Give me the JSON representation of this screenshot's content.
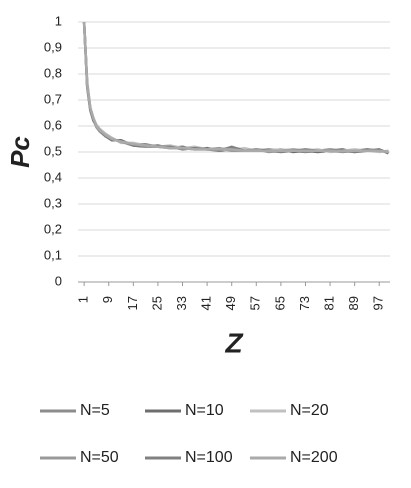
{
  "chart_data": {
    "type": "line",
    "y_label": "Pc",
    "x_label": "Z",
    "x": [
      1,
      2,
      3,
      4,
      5,
      6,
      8,
      10,
      13,
      17,
      21,
      25,
      29,
      33,
      37,
      41,
      45,
      49,
      53,
      57,
      61,
      65,
      69,
      73,
      77,
      81,
      85,
      89,
      93,
      97,
      100
    ],
    "xlim": [
      -1,
      100.5
    ],
    "xticks": [
      1,
      9,
      17,
      25,
      33,
      41,
      49,
      57,
      65,
      73,
      81,
      89,
      97
    ],
    "ylim": [
      0,
      1
    ],
    "yticks": [
      0,
      {
        "value": 0.1,
        "label": "0,1"
      },
      {
        "value": 0.2,
        "label": "0,2"
      },
      {
        "value": 0.3,
        "label": "0,3"
      },
      {
        "value": 0.4,
        "label": "0,4"
      },
      {
        "value": 0.5,
        "label": "0,5"
      },
      {
        "value": 0.6,
        "label": "0,6"
      },
      {
        "value": 0.7,
        "label": "0,7"
      },
      {
        "value": 0.8,
        "label": "0,8"
      },
      {
        "value": 0.9,
        "label": "0,9"
      },
      1
    ],
    "grid": true,
    "legend": "bottom",
    "series": [
      {
        "name": "N=5",
        "color": "#8c8c8c",
        "values": [
          1.0,
          0.76,
          0.67,
          0.63,
          0.6,
          0.585,
          0.565,
          0.55,
          0.54,
          0.53,
          0.53,
          0.52,
          0.52,
          0.515,
          0.515,
          0.51,
          0.51,
          0.515,
          0.51,
          0.505,
          0.51,
          0.505,
          0.505,
          0.5,
          0.505,
          0.51,
          0.505,
          0.505,
          0.51,
          0.505,
          0.5
        ]
      },
      {
        "name": "N=10",
        "color": "#6e6e6e",
        "values": [
          1.0,
          0.75,
          0.66,
          0.62,
          0.6,
          0.58,
          0.56,
          0.545,
          0.545,
          0.525,
          0.52,
          0.525,
          0.515,
          0.52,
          0.51,
          0.515,
          0.505,
          0.51,
          0.505,
          0.51,
          0.505,
          0.51,
          0.5,
          0.505,
          0.5,
          0.505,
          0.51,
          0.5,
          0.505,
          0.51,
          0.495
        ]
      },
      {
        "name": "N=20",
        "color": "#c0c0c0",
        "values": [
          1.0,
          0.77,
          0.67,
          0.63,
          0.605,
          0.59,
          0.57,
          0.555,
          0.535,
          0.535,
          0.525,
          0.52,
          0.525,
          0.515,
          0.52,
          0.51,
          0.51,
          0.505,
          0.515,
          0.505,
          0.505,
          0.51,
          0.505,
          0.505,
          0.51,
          0.5,
          0.505,
          0.51,
          0.505,
          0.5,
          0.505
        ]
      },
      {
        "name": "N=50",
        "color": "#999999",
        "values": [
          1.0,
          0.76,
          0.665,
          0.625,
          0.595,
          0.58,
          0.565,
          0.55,
          0.54,
          0.53,
          0.52,
          0.52,
          0.515,
          0.515,
          0.51,
          0.51,
          0.515,
          0.505,
          0.505,
          0.51,
          0.5,
          0.505,
          0.51,
          0.505,
          0.505,
          0.505,
          0.5,
          0.505,
          0.505,
          0.505,
          0.5
        ]
      },
      {
        "name": "N=100",
        "color": "#808080",
        "values": [
          1.0,
          0.755,
          0.665,
          0.625,
          0.6,
          0.585,
          0.56,
          0.55,
          0.54,
          0.525,
          0.525,
          0.52,
          0.52,
          0.51,
          0.515,
          0.51,
          0.505,
          0.52,
          0.505,
          0.505,
          0.505,
          0.5,
          0.505,
          0.51,
          0.505,
          0.505,
          0.505,
          0.5,
          0.51,
          0.505,
          0.5
        ]
      },
      {
        "name": "N=200",
        "color": "#aaaaaa",
        "values": [
          1.0,
          0.76,
          0.67,
          0.63,
          0.6,
          0.585,
          0.565,
          0.55,
          0.54,
          0.53,
          0.525,
          0.52,
          0.515,
          0.515,
          0.51,
          0.51,
          0.51,
          0.51,
          0.505,
          0.505,
          0.505,
          0.505,
          0.505,
          0.505,
          0.505,
          0.505,
          0.505,
          0.505,
          0.505,
          0.505,
          0.5
        ]
      }
    ]
  }
}
